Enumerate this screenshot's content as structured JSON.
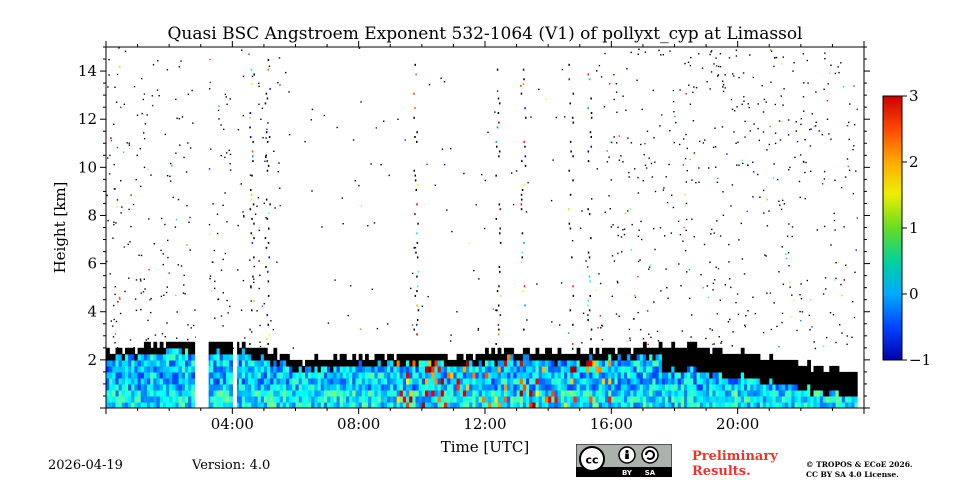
{
  "header": {
    "title": "Quasi BSC Angstroem Exponent 532-1064 (V1) of pollyxt_cyp at Limassol"
  },
  "footer": {
    "date": "2026-04-19",
    "version": "Version: 4.0",
    "license_badge": {
      "cc": "cc",
      "by": "BY",
      "sa": "SA"
    },
    "preliminary": {
      "line1": "Preliminary",
      "line2": "Results."
    },
    "copyright": {
      "line1": "© TROPOS & ECoE 2026.",
      "line2": "CC BY SA 4.0 License."
    }
  },
  "chart_data": {
    "type": "heatmap",
    "title": "Quasi BSC Angstroem Exponent 532-1064 (V1) of pollyxt_cyp at Limassol",
    "xlabel": "Time [UTC]",
    "ylabel": "Height [km]",
    "xlim": [
      0,
      24
    ],
    "ylim": [
      0,
      15
    ],
    "x_ticks": [
      {
        "value": 4,
        "label": "04:00"
      },
      {
        "value": 8,
        "label": "08:00"
      },
      {
        "value": 12,
        "label": "12:00"
      },
      {
        "value": 16,
        "label": "16:00"
      },
      {
        "value": 20,
        "label": "20:00"
      }
    ],
    "y_ticks": [
      {
        "value": 2,
        "label": "2"
      },
      {
        "value": 4,
        "label": "4"
      },
      {
        "value": 6,
        "label": "6"
      },
      {
        "value": 8,
        "label": "8"
      },
      {
        "value": 10,
        "label": "10"
      },
      {
        "value": 12,
        "label": "12"
      },
      {
        "value": 14,
        "label": "14"
      }
    ],
    "colorbar": {
      "min": -1,
      "max": 3,
      "colormap": "jet",
      "ticks": [
        {
          "value": -1,
          "label": "−1"
        },
        {
          "value": 0,
          "label": "0"
        },
        {
          "value": 1,
          "label": "1"
        },
        {
          "value": 2,
          "label": "2"
        },
        {
          "value": 3,
          "label": "3"
        }
      ]
    },
    "boundary_layer_top_km": [
      [
        0.0,
        2.3
      ],
      [
        1.0,
        2.4
      ],
      [
        2.0,
        2.6
      ],
      [
        3.0,
        2.7
      ],
      [
        4.0,
        2.6
      ],
      [
        5.0,
        2.3
      ],
      [
        6.0,
        1.8
      ],
      [
        7.0,
        1.9
      ],
      [
        8.0,
        2.0
      ],
      [
        9.0,
        2.1
      ],
      [
        10.0,
        2.2
      ],
      [
        11.0,
        2.0
      ],
      [
        12.0,
        2.2
      ],
      [
        13.0,
        2.3
      ],
      [
        14.0,
        2.2
      ],
      [
        15.0,
        2.2
      ],
      [
        16.0,
        2.3
      ],
      [
        17.0,
        2.4
      ],
      [
        18.0,
        2.5
      ],
      [
        19.0,
        2.4
      ],
      [
        20.0,
        2.2
      ],
      [
        21.0,
        1.9
      ],
      [
        22.0,
        1.7
      ],
      [
        23.0,
        1.5
      ],
      [
        23.7,
        1.2
      ]
    ],
    "data_gaps_utc": [
      [
        2.85,
        3.25
      ],
      [
        4.05,
        4.15
      ],
      [
        23.8,
        24.0
      ]
    ],
    "cloud_columns_utc": [
      4.6,
      5.1,
      9.8,
      12.4,
      13.2,
      14.7,
      15.3
    ]
  }
}
